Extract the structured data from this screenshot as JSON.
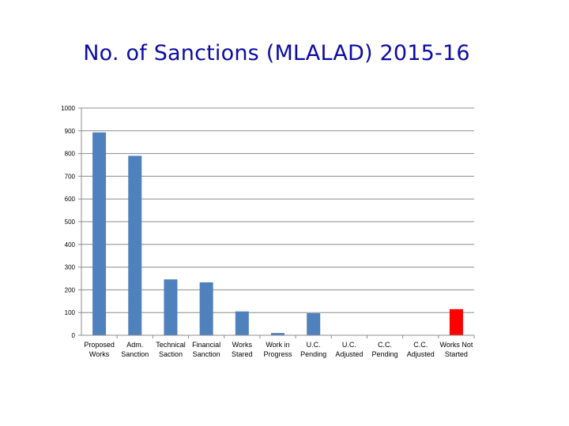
{
  "chart_data": {
    "type": "bar",
    "title": "No. of Sanctions (MLALAD) 2015-16",
    "xlabel": "",
    "ylabel": "",
    "ylim": [
      0,
      1000
    ],
    "yticks": [
      0,
      100,
      200,
      300,
      400,
      500,
      600,
      700,
      800,
      900,
      1000
    ],
    "grid": true,
    "legend": "none",
    "categories": [
      [
        "Proposed",
        "Works"
      ],
      [
        "Adm.",
        "Sanction"
      ],
      [
        "Technical",
        "Saction"
      ],
      [
        "Financial",
        "Sanction"
      ],
      [
        "Works",
        "Stared"
      ],
      [
        "Work in",
        "Progress"
      ],
      [
        "U.C.",
        "Pending"
      ],
      [
        "U.C.",
        "Adjusted"
      ],
      [
        "C.C.",
        "Pending"
      ],
      [
        "C.C.",
        "Adjusted"
      ],
      [
        "Works Not",
        "Started"
      ]
    ],
    "values": [
      893,
      790,
      246,
      233,
      105,
      10,
      97,
      0,
      0,
      0,
      115
    ],
    "colors": [
      "#4f81bd",
      "#4f81bd",
      "#4f81bd",
      "#4f81bd",
      "#4f81bd",
      "#4f81bd",
      "#4f81bd",
      "#4f81bd",
      "#4f81bd",
      "#4f81bd",
      "#ff0000"
    ]
  }
}
